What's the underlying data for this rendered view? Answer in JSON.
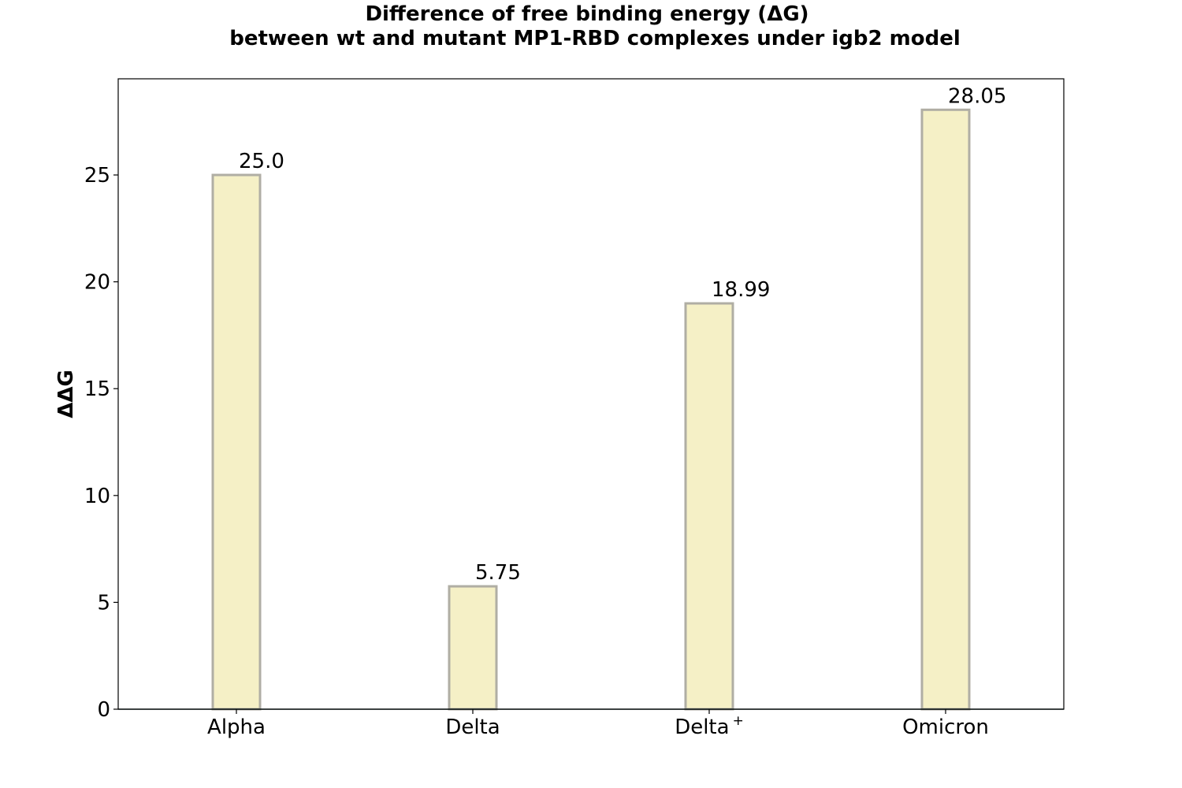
{
  "chart_data": {
    "type": "bar",
    "title_lines": [
      "Difference of free binding energy (ΔG)",
      "between wt and mutant MP1-RBD complexes under igb2 model"
    ],
    "xlabel": "",
    "ylabel": "ΔΔG",
    "categories": [
      {
        "base": "Alpha",
        "sup": ""
      },
      {
        "base": "Delta",
        "sup": ""
      },
      {
        "base": "Delta",
        "sup": "+"
      },
      {
        "base": "Omicron",
        "sup": ""
      }
    ],
    "values": [
      25.0,
      5.75,
      18.99,
      28.05
    ],
    "value_labels": [
      "25.0",
      "5.75",
      "18.99",
      "28.05"
    ],
    "ylim": [
      0,
      29.5
    ],
    "yticks": [
      0,
      5,
      10,
      15,
      20,
      25
    ],
    "grid": false,
    "legend": "none",
    "colors": {
      "bar_fill": "#f5f0c6",
      "bar_edge": "#b0aea4",
      "baseline": "#2f4f4f",
      "axes": "#000000"
    }
  }
}
